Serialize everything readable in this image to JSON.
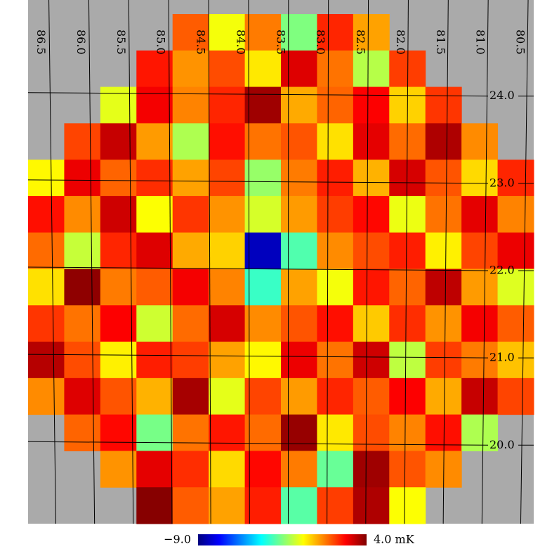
{
  "chart_data": {
    "type": "heatmap",
    "values": [
      [
        null,
        null,
        null,
        null,
        1.2,
        -1.0,
        0.8,
        -2.5,
        1.9,
        0.3,
        null,
        null,
        null,
        null
      ],
      [
        null,
        null,
        null,
        2.1,
        0.5,
        1.4,
        -0.6,
        2.8,
        0.9,
        -1.8,
        1.6,
        null,
        null,
        null
      ],
      [
        null,
        null,
        -1.2,
        2.5,
        0.7,
        1.9,
        3.6,
        0.2,
        1.1,
        2.4,
        -0.3,
        1.7,
        null,
        null
      ],
      [
        null,
        1.5,
        3.1,
        0.4,
        -1.9,
        2.2,
        0.9,
        1.3,
        -0.5,
        2.7,
        1.0,
        3.4,
        0.6,
        null
      ],
      [
        -0.8,
        2.6,
        1.1,
        1.8,
        0.3,
        1.5,
        -2.2,
        0.8,
        2.0,
        0.1,
        2.9,
        1.3,
        -0.4,
        1.9
      ],
      [
        2.2,
        0.6,
        3.0,
        -0.9,
        1.7,
        0.5,
        -1.4,
        0.4,
        1.6,
        2.3,
        -1.1,
        0.9,
        2.7,
        0.7
      ],
      [
        1.0,
        -1.6,
        1.9,
        2.8,
        0.2,
        -0.3,
        -8.2,
        -3.1,
        0.6,
        1.4,
        2.0,
        -0.7,
        1.5,
        2.6
      ],
      [
        -0.5,
        3.8,
        0.8,
        1.2,
        2.5,
        0.7,
        -3.4,
        0.3,
        -1.0,
        2.1,
        1.1,
        3.2,
        0.4,
        -1.3
      ],
      [
        1.7,
        0.9,
        2.4,
        -1.5,
        1.0,
        2.9,
        0.6,
        1.3,
        2.2,
        -0.2,
        1.8,
        0.5,
        2.5,
        1.2
      ],
      [
        3.3,
        1.4,
        -0.7,
        2.0,
        1.6,
        0.3,
        -0.8,
        2.6,
        0.9,
        3.0,
        -1.7,
        1.6,
        0.8,
        -0.1
      ],
      [
        0.6,
        2.8,
        1.3,
        0.1,
        3.5,
        -1.2,
        1.5,
        0.4,
        1.9,
        1.2,
        2.4,
        0.2,
        3.1,
        1.5
      ],
      [
        null,
        1.1,
        2.3,
        -2.6,
        0.9,
        2.1,
        1.0,
        3.7,
        -0.6,
        1.4,
        0.7,
        2.2,
        -1.9,
        null
      ],
      [
        null,
        null,
        0.5,
        2.7,
        1.8,
        -0.4,
        2.3,
        0.8,
        -2.8,
        3.6,
        1.3,
        0.6,
        null,
        null
      ],
      [
        null,
        null,
        null,
        3.9,
        1.2,
        0.3,
        2.0,
        -3.0,
        1.6,
        3.4,
        -0.9,
        null,
        null,
        null
      ]
    ],
    "xlim": [
      86.76,
      80.43
    ],
    "ylim": [
      24.94,
      19.1
    ],
    "xticks": [
      86.5,
      {
        "value": 86,
        "label": "86.0"
      },
      85.5,
      {
        "value": 85,
        "label": "85.0"
      },
      84.5,
      {
        "value": 84,
        "label": "84.0"
      },
      83.5,
      {
        "value": 83,
        "label": "83.0"
      },
      82.5,
      {
        "value": 82,
        "label": "82.0"
      },
      81.5,
      {
        "value": 81,
        "label": "81.0"
      },
      80.5
    ],
    "yticks": [
      {
        "value": 24,
        "label": "24.0"
      },
      {
        "value": 23,
        "label": "23.0"
      },
      {
        "value": 22,
        "label": "22.0"
      },
      {
        "value": 21,
        "label": "21.0"
      },
      {
        "value": 20,
        "label": "20.0"
      }
    ],
    "colorbar_ticks": [
      {
        "value": -9,
        "label": "−9.0"
      },
      {
        "value": 4,
        "label": "4.0 mK"
      }
    ],
    "colormap": [
      "#00007f",
      "#0000ff",
      "#007fff",
      "#00ffff",
      "#7fff7f",
      "#ffff00",
      "#ff7f00",
      "#ff0000",
      "#7f0000"
    ],
    "background": "#aaaaaa",
    "grid": true
  }
}
